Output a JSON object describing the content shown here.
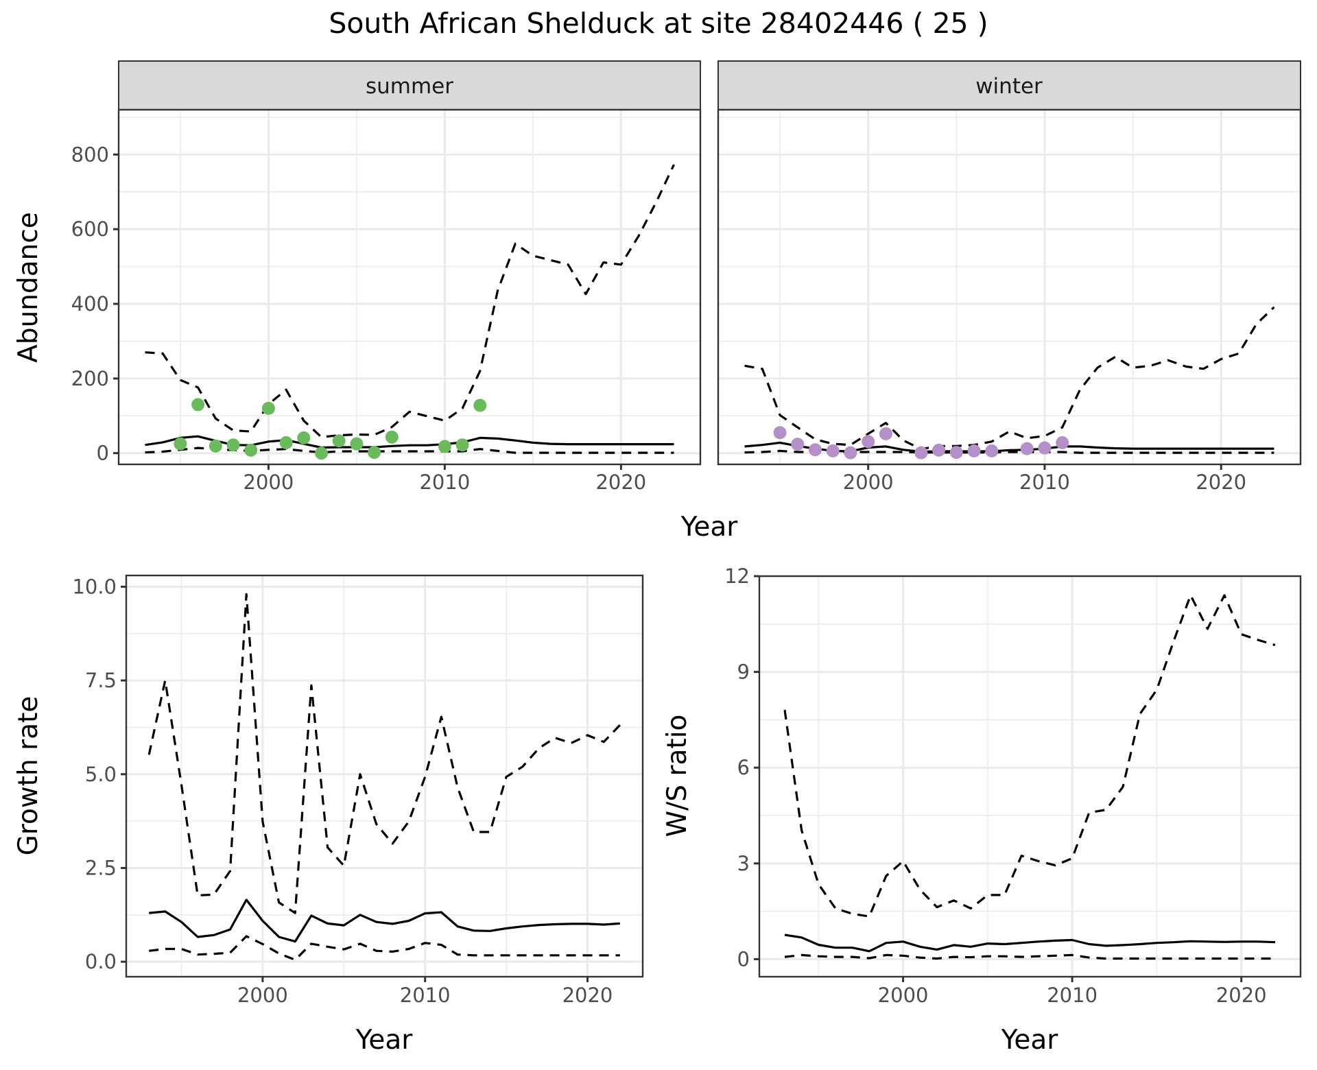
{
  "title": "South African Shelduck at site 28402446 ( 25 )",
  "colors": {
    "summer_points": "#6abb5c",
    "winter_points": "#b58fc7",
    "line": "#000000",
    "strip_fill": "#d9d9d9",
    "grid": "#ebebeb"
  },
  "chart_data": [
    {
      "id": "abundance-summer",
      "type": "line",
      "facet_label": "summer",
      "xlabel": "Year",
      "ylabel": "Abundance",
      "xlim": [
        1991.5,
        2024.5
      ],
      "ylim": [
        -30,
        920
      ],
      "xticks": [
        2000,
        2010,
        2020
      ],
      "xtick_labels": [
        "2000",
        "2010",
        "2020"
      ],
      "yticks": [
        0,
        200,
        400,
        600,
        800
      ],
      "ytick_labels": [
        "0",
        "200",
        "400",
        "600",
        "800"
      ],
      "grid": true,
      "x": [
        1993,
        1994,
        1995,
        1996,
        1997,
        1998,
        1999,
        2000,
        2001,
        2002,
        2003,
        2004,
        2005,
        2006,
        2007,
        2008,
        2009,
        2010,
        2011,
        2012,
        2013,
        2014,
        2015,
        2016,
        2017,
        2018,
        2019,
        2020,
        2021,
        2022,
        2023
      ],
      "series": [
        {
          "name": "upper",
          "style": "dashed",
          "values": [
            270,
            267,
            196,
            176,
            93,
            61,
            58,
            131,
            170,
            87,
            43,
            48,
            50,
            49,
            70,
            111,
            99,
            87,
            120,
            220,
            435,
            561,
            529,
            517,
            505,
            426,
            511,
            505,
            582,
            673,
            773
          ]
        },
        {
          "name": "estimate",
          "style": "solid",
          "values": [
            22,
            29,
            41,
            45,
            33,
            22,
            21,
            31,
            35,
            25,
            15,
            16,
            16,
            16,
            19,
            21,
            21,
            24,
            29,
            41,
            39,
            34,
            28,
            25,
            24,
            24,
            24,
            24,
            24,
            24,
            24
          ]
        },
        {
          "name": "lower",
          "style": "dashed",
          "values": [
            2,
            4,
            9,
            14,
            11,
            8,
            6,
            9,
            11,
            6,
            2,
            5,
            5,
            5,
            5,
            5,
            5,
            5,
            5,
            11,
            6,
            1,
            1,
            1,
            1,
            1,
            1,
            1,
            1,
            1,
            1
          ]
        }
      ],
      "points": {
        "x": [
          1995,
          1996,
          1997,
          1998,
          1999,
          2000,
          2001,
          2002,
          2003,
          2004,
          2005,
          2006,
          2007,
          2010,
          2011,
          2012
        ],
        "y": [
          25,
          130,
          19,
          22,
          8,
          120,
          28,
          41,
          0,
          33,
          25,
          2,
          43,
          18,
          22,
          128
        ]
      }
    },
    {
      "id": "abundance-winter",
      "type": "line",
      "facet_label": "winter",
      "xlabel": "Year",
      "ylabel": "Abundance",
      "xlim": [
        1991.5,
        2024.5
      ],
      "ylim": [
        -30,
        920
      ],
      "xticks": [
        2000,
        2010,
        2020
      ],
      "xtick_labels": [
        "2000",
        "2010",
        "2020"
      ],
      "yticks": [
        0,
        200,
        400,
        600,
        800
      ],
      "grid": true,
      "x": [
        1993,
        1994,
        1995,
        1996,
        1997,
        1998,
        1999,
        2000,
        2001,
        2002,
        2003,
        2004,
        2005,
        2006,
        2007,
        2008,
        2009,
        2010,
        2011,
        2012,
        2013,
        2014,
        2015,
        2016,
        2017,
        2018,
        2019,
        2020,
        2021,
        2022,
        2023
      ],
      "series": [
        {
          "name": "upper",
          "style": "dashed",
          "values": [
            234,
            226,
            102,
            69,
            37,
            25,
            22,
            52,
            81,
            34,
            11,
            19,
            19,
            22,
            31,
            58,
            40,
            46,
            69,
            170,
            229,
            258,
            229,
            234,
            249,
            232,
            226,
            252,
            267,
            346,
            391
          ]
        },
        {
          "name": "estimate",
          "style": "solid",
          "values": [
            18,
            22,
            28,
            19,
            12,
            6,
            5,
            15,
            18,
            9,
            4,
            5,
            5,
            5,
            5,
            8,
            9,
            12,
            18,
            18,
            15,
            13,
            12,
            12,
            12,
            12,
            12,
            12,
            12,
            12,
            12
          ]
        },
        {
          "name": "lower",
          "style": "dashed",
          "values": [
            2,
            3,
            6,
            3,
            3,
            3,
            3,
            3,
            3,
            3,
            2,
            2,
            2,
            2,
            2,
            3,
            3,
            3,
            3,
            1,
            1,
            1,
            1,
            1,
            1,
            1,
            1,
            1,
            1,
            1,
            1
          ]
        }
      ],
      "points": {
        "x": [
          1995,
          1996,
          1997,
          1998,
          1999,
          2000,
          2001,
          2003,
          2004,
          2005,
          2006,
          2007,
          2009,
          2010,
          2011
        ],
        "y": [
          55,
          24,
          9,
          6,
          1,
          31,
          52,
          1,
          8,
          2,
          6,
          6,
          12,
          14,
          28
        ]
      }
    },
    {
      "id": "growth-rate",
      "type": "line",
      "xlabel": "Year",
      "ylabel": "Growth rate",
      "xlim": [
        1991.6,
        2023.4
      ],
      "ylim": [
        -0.4,
        10.3
      ],
      "xticks": [
        2000,
        2010,
        2020
      ],
      "xtick_labels": [
        "2000",
        "2010",
        "2020"
      ],
      "yticks": [
        0,
        2.5,
        5,
        7.5,
        10
      ],
      "ytick_labels": [
        "0.0",
        "2.5",
        "5.0",
        "7.5",
        "10.0"
      ],
      "grid": true,
      "x": [
        1993,
        1994,
        1995,
        1996,
        1997,
        1998,
        1999,
        2000,
        2001,
        2002,
        2003,
        2004,
        2005,
        2006,
        2007,
        2008,
        2009,
        2010,
        2011,
        2012,
        2013,
        2014,
        2015,
        2016,
        2017,
        2018,
        2019,
        2020,
        2021,
        2022
      ],
      "series": [
        {
          "name": "upper",
          "style": "dashed",
          "values": [
            5.52,
            7.5,
            4.72,
            1.77,
            1.79,
            2.42,
            9.8,
            3.74,
            1.58,
            1.3,
            7.37,
            3.05,
            2.56,
            5.0,
            3.67,
            3.15,
            3.74,
            4.93,
            6.53,
            4.65,
            3.46,
            3.46,
            4.93,
            5.2,
            5.69,
            5.97,
            5.83,
            6.04,
            5.86,
            6.31
          ]
        },
        {
          "name": "estimate",
          "style": "solid",
          "values": [
            1.3,
            1.34,
            1.06,
            0.66,
            0.71,
            0.86,
            1.65,
            1.09,
            0.66,
            0.54,
            1.23,
            1.02,
            0.97,
            1.25,
            1.06,
            1.01,
            1.09,
            1.29,
            1.32,
            0.94,
            0.83,
            0.82,
            0.89,
            0.94,
            0.98,
            1.0,
            1.01,
            1.01,
            0.99,
            1.02
          ]
        },
        {
          "name": "lower",
          "style": "dashed",
          "values": [
            0.29,
            0.34,
            0.34,
            0.19,
            0.21,
            0.24,
            0.68,
            0.47,
            0.22,
            0.05,
            0.48,
            0.4,
            0.33,
            0.48,
            0.29,
            0.27,
            0.34,
            0.5,
            0.45,
            0.19,
            0.17,
            0.17,
            0.17,
            0.17,
            0.17,
            0.17,
            0.17,
            0.17,
            0.17,
            0.17
          ]
        }
      ]
    },
    {
      "id": "ws-ratio",
      "type": "line",
      "xlabel": "Year",
      "ylabel": "W/S ratio",
      "xlim": [
        1991.5,
        2023.5
      ],
      "ylim": [
        -0.55,
        12.0
      ],
      "xticks": [
        2000,
        2010,
        2020
      ],
      "xtick_labels": [
        "2000",
        "2010",
        "2020"
      ],
      "yticks": [
        0,
        3,
        6,
        9,
        12
      ],
      "ytick_labels": [
        "0",
        "3",
        "6",
        "9",
        "12"
      ],
      "grid": true,
      "x": [
        1993,
        1994,
        1995,
        1996,
        1997,
        1998,
        1999,
        2000,
        2001,
        2002,
        2003,
        2004,
        2005,
        2006,
        2007,
        2008,
        2009,
        2010,
        2011,
        2012,
        2013,
        2014,
        2015,
        2016,
        2017,
        2018,
        2019,
        2020,
        2021,
        2022
      ],
      "series": [
        {
          "name": "upper",
          "style": "dashed",
          "values": [
            7.81,
            4.04,
            2.35,
            1.59,
            1.42,
            1.34,
            2.61,
            3.07,
            2.18,
            1.63,
            1.84,
            1.59,
            2.01,
            2.01,
            3.24,
            3.07,
            2.94,
            3.16,
            4.59,
            4.68,
            5.4,
            7.68,
            8.44,
            9.97,
            11.4,
            10.35,
            11.4,
            10.18,
            10.0,
            9.84
          ]
        },
        {
          "name": "estimate",
          "style": "solid",
          "values": [
            0.76,
            0.68,
            0.45,
            0.36,
            0.36,
            0.25,
            0.51,
            0.55,
            0.39,
            0.3,
            0.44,
            0.39,
            0.49,
            0.47,
            0.51,
            0.55,
            0.58,
            0.6,
            0.47,
            0.42,
            0.44,
            0.47,
            0.51,
            0.53,
            0.56,
            0.55,
            0.54,
            0.55,
            0.55,
            0.53
          ]
        },
        {
          "name": "lower",
          "style": "dashed",
          "values": [
            0.07,
            0.13,
            0.09,
            0.07,
            0.07,
            0.03,
            0.13,
            0.11,
            0.05,
            0.02,
            0.07,
            0.06,
            0.09,
            0.09,
            0.07,
            0.09,
            0.11,
            0.13,
            0.05,
            0.02,
            0.02,
            0.02,
            0.02,
            0.02,
            0.02,
            0.02,
            0.02,
            0.02,
            0.02,
            0.02
          ]
        }
      ]
    }
  ],
  "shared_xlabel_top": "Year"
}
